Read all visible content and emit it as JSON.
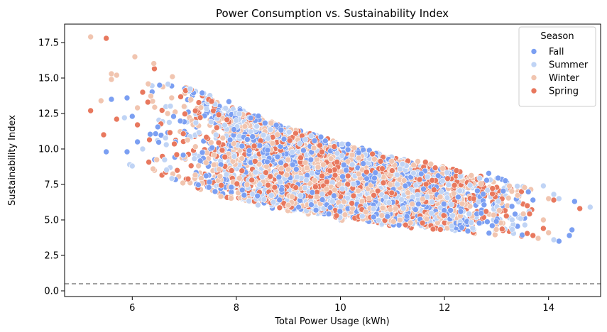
{
  "chart_data": {
    "type": "scatter",
    "title": "Power Consumption vs. Sustainability Index",
    "xlabel": "Total Power Usage (kWh)",
    "ylabel": "Sustainability Index",
    "xlim": [
      4.7,
      15.0
    ],
    "ylim": [
      -0.4,
      18.8
    ],
    "xticks": [
      6,
      8,
      10,
      12,
      14
    ],
    "yticks": [
      0.0,
      2.5,
      5.0,
      7.5,
      10.0,
      12.5,
      15.0,
      17.5
    ],
    "grid": false,
    "legend": {
      "title": "Season",
      "placement": "top-right",
      "entries": [
        "Fall",
        "Summer",
        "Winter",
        "Spring"
      ]
    },
    "reference_line": {
      "y": 0.5,
      "style": "dashed",
      "color": "#808080"
    },
    "colors": {
      "Fall": "#7b9ff2",
      "Summer": "#c0d4f5",
      "Winter": "#f1c5b0",
      "Spring": "#e8785e"
    },
    "point_cloud": {
      "approx_points_per_series": 1200,
      "x_mean": 10.0,
      "x_std": 1.5,
      "trend": "y roughly proportional to 1/x with vertical spread"
    },
    "series": [
      {
        "name": "Fall",
        "points": [
          [
            5.5,
            9.8
          ],
          [
            5.6,
            13.5
          ],
          [
            5.9,
            13.6
          ],
          [
            5.9,
            9.8
          ],
          [
            6.0,
            12.3
          ],
          [
            6.1,
            10.5
          ],
          [
            14.2,
            3.5
          ],
          [
            14.4,
            3.9
          ],
          [
            14.45,
            4.3
          ],
          [
            14.5,
            6.3
          ],
          [
            13.7,
            6.4
          ]
        ]
      },
      {
        "name": "Summer",
        "points": [
          [
            5.85,
            12.2
          ],
          [
            5.95,
            8.9
          ],
          [
            6.0,
            8.8
          ],
          [
            6.2,
            10.0
          ],
          [
            14.1,
            6.8
          ],
          [
            14.1,
            3.6
          ],
          [
            14.8,
            5.9
          ],
          [
            13.9,
            7.4
          ],
          [
            14.2,
            6.5
          ]
        ]
      },
      {
        "name": "Winter",
        "points": [
          [
            5.2,
            17.9
          ],
          [
            5.4,
            13.4
          ],
          [
            5.6,
            15.3
          ],
          [
            5.6,
            14.9
          ],
          [
            5.7,
            15.2
          ],
          [
            6.05,
            16.5
          ],
          [
            6.1,
            12.9
          ],
          [
            6.4,
            8.6
          ],
          [
            13.8,
            3.7
          ],
          [
            14.0,
            4.1
          ],
          [
            14.0,
            6.5
          ],
          [
            13.9,
            5.0
          ]
        ]
      },
      {
        "name": "Spring",
        "points": [
          [
            5.2,
            12.7
          ],
          [
            5.45,
            11.0
          ],
          [
            5.5,
            17.8
          ],
          [
            5.7,
            12.1
          ],
          [
            6.1,
            11.7
          ],
          [
            6.2,
            14.0
          ],
          [
            6.3,
            13.3
          ],
          [
            14.6,
            5.8
          ],
          [
            14.1,
            6.4
          ],
          [
            13.9,
            4.4
          ],
          [
            13.7,
            3.9
          ]
        ]
      }
    ]
  }
}
